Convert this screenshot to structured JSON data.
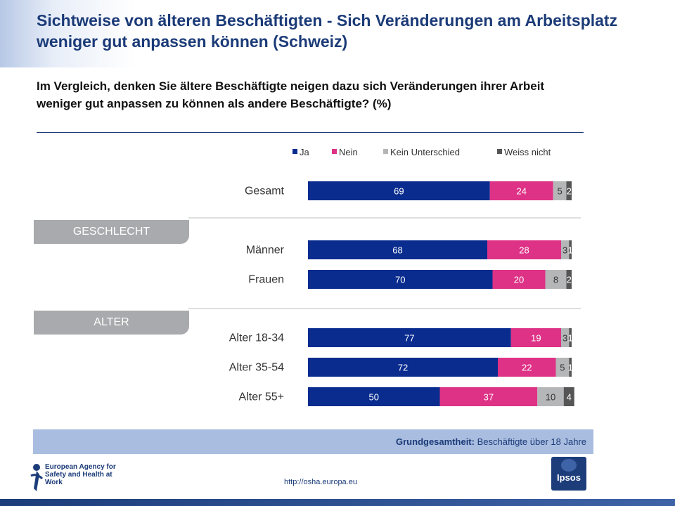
{
  "title": "Sichtweise von älteren Beschäftigten - Sich Veränderungen am Arbeitsplatz weniger gut anpassen können (Schweiz)",
  "question": "Im Vergleich, denken Sie ältere Beschäftigte neigen dazu sich Veränderungen ihrer Arbeit weniger gut anpassen zu können  als andere Beschäftigte? (%)",
  "segments": [
    "GESCHLECHT",
    "ALTER"
  ],
  "footer": {
    "label": "Grundgesamtheit:",
    "value": "Beschäftigte über 18 Jahre"
  },
  "branding": {
    "agency": "European Agency for Safety and Health at Work",
    "url": "http://osha.europa.eu",
    "ipsos": "Ipsos"
  },
  "chart_data": {
    "type": "bar",
    "orientation": "horizontal",
    "stacked": true,
    "categories": [
      "Gesamt",
      "Männer",
      "Frauen",
      "Alter 18-34",
      "Alter 35-54",
      "Alter 55+"
    ],
    "series": [
      {
        "name": "Ja",
        "color": "#0a2c8f",
        "values": [
          69,
          68,
          70,
          77,
          72,
          50
        ]
      },
      {
        "name": "Nein",
        "color": "#de3286",
        "values": [
          24,
          28,
          20,
          19,
          22,
          37
        ]
      },
      {
        "name": "Kein Unterschied",
        "color": "#b5b6b8",
        "values": [
          5,
          3,
          8,
          3,
          5,
          10
        ]
      },
      {
        "name": "Weiss nicht",
        "color": "#555555",
        "values": [
          2,
          1,
          2,
          1,
          1,
          4
        ]
      }
    ],
    "xlim": [
      0,
      100
    ],
    "legend": "top",
    "grid": false
  }
}
